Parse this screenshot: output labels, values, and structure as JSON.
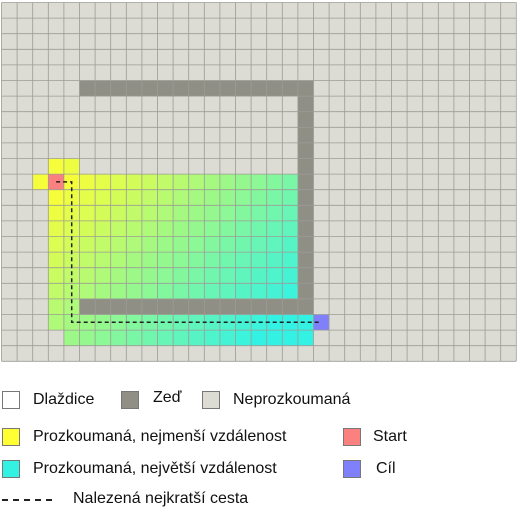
{
  "grid": {
    "cols": 33,
    "rows": 23,
    "colors": {
      "unexplored": "#dcdbd4",
      "wall": "#8f8f85",
      "gridline": "#9c9c96",
      "start": "#fb8080",
      "goal": "#8080fb",
      "near": "#ffff33",
      "far": "#33f2e3",
      "path": "#222222"
    },
    "walls": [
      {
        "c0": 5,
        "r0": 5,
        "c1": 19,
        "r1": 5
      },
      {
        "c0": 19,
        "r0": 5,
        "c1": 19,
        "r1": 19
      },
      {
        "c0": 5,
        "r0": 19,
        "c1": 19,
        "r1": 19
      }
    ],
    "start": {
      "c": 3,
      "r": 11
    },
    "goal": {
      "c": 20,
      "r": 20
    },
    "path": [
      [
        3,
        11
      ],
      [
        4,
        11
      ],
      [
        4,
        20
      ],
      [
        20,
        20
      ]
    ]
  },
  "legend": {
    "tile": {
      "label": "Dlaždice",
      "color": "#ffffff"
    },
    "wall": {
      "label": "Zeď",
      "color": "#8f8f85"
    },
    "unexplored": {
      "label": "Neprozkoumaná",
      "color": "#dcdbd4"
    },
    "explored_min": {
      "label": "Prozkoumaná, nejmenší vzdálenost",
      "color": "#ffff33"
    },
    "start": {
      "label": "Start",
      "color": "#fb8080"
    },
    "explored_max": {
      "label": "Prozkoumaná, největší vzdálenost",
      "color": "#33f2e3"
    },
    "goal": {
      "label": "Cíl",
      "color": "#8080fb"
    },
    "shortest_path": {
      "label": "Nalezená nejkratší cesta"
    }
  }
}
